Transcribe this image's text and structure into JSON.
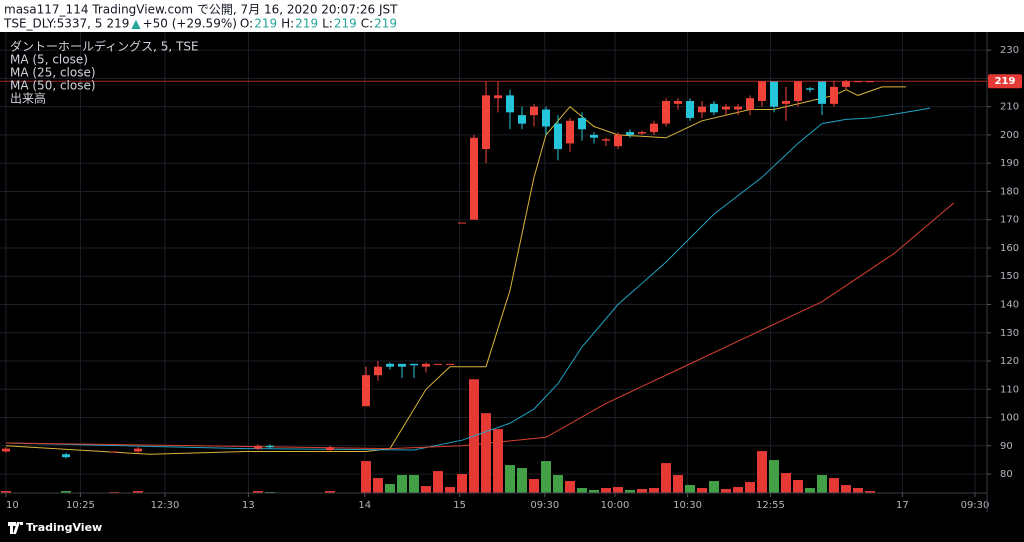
{
  "header": {
    "title": "masa117_114 TradingView.com で公開, 7月 16, 2020 20:07:26 JST",
    "symbol": "TSE_DLY:5337, 5",
    "last": 219,
    "arrow": "▲",
    "change": "+50 (+29.59%)",
    "ohlc": [
      {
        "label": "O:",
        "value": 219
      },
      {
        "label": "H:",
        "value": 219
      },
      {
        "label": "L:",
        "value": 219
      },
      {
        "label": "C:",
        "value": 219
      }
    ]
  },
  "footer": {
    "brand": "TradingView"
  },
  "chart_data": {
    "type": "candlestick",
    "title": "ダントーホールディングス, 5, TSE",
    "volume_name": "出来高",
    "up_color": "#f0433a",
    "down_color": "#26c6da",
    "volume_up_color": "#e53935",
    "volume_down_color": "#43a047",
    "last_price": 219,
    "last_price_color": "#e53935",
    "x": [
      0,
      5,
      9,
      11,
      21,
      22,
      27,
      30,
      31,
      32,
      33,
      34,
      35,
      36,
      37,
      38,
      39,
      40,
      41,
      42,
      43,
      44,
      45,
      46,
      47,
      48,
      49,
      50,
      51,
      52,
      53,
      54,
      55,
      56,
      57,
      58,
      59,
      60,
      61,
      62,
      63,
      64,
      65,
      66,
      67,
      68,
      69,
      70,
      71,
      72
    ],
    "open": [
      88,
      87,
      88,
      88,
      89,
      90,
      88.5,
      104,
      115,
      119,
      119,
      119,
      118,
      119,
      119,
      169,
      170,
      195,
      213,
      214,
      207,
      207,
      209,
      204,
      197,
      206,
      200,
      198,
      196,
      201,
      200.5,
      201,
      204,
      211,
      212,
      208,
      211,
      209,
      209,
      209,
      212,
      219,
      211,
      212,
      216.5,
      219,
      211,
      217,
      219,
      219
    ],
    "high": [
      89.5,
      87.5,
      88,
      89.5,
      90.5,
      90.5,
      90,
      118,
      120,
      119.5,
      119,
      119,
      119.5,
      119,
      119,
      169,
      200,
      219,
      219,
      216,
      210,
      211,
      210,
      207,
      206,
      208,
      201,
      199,
      201,
      202,
      201.5,
      205,
      213,
      213,
      213,
      212,
      212,
      211,
      211,
      214,
      219,
      219,
      217,
      219,
      217,
      219,
      219,
      219.5,
      219,
      219
    ],
    "low": [
      87.5,
      85.5,
      88,
      87.5,
      88.5,
      89,
      88,
      104,
      113,
      117,
      114,
      114,
      116,
      119,
      119,
      169,
      170,
      190,
      208,
      202,
      202,
      203,
      200,
      191,
      194,
      198,
      197,
      196,
      195,
      199,
      200,
      200,
      203,
      209,
      205,
      206,
      207,
      207,
      207,
      207,
      210,
      208,
      205,
      210,
      215,
      207,
      210,
      216,
      219,
      219
    ],
    "close": [
      89,
      86,
      88,
      89,
      90,
      89.5,
      89.5,
      115,
      118,
      118,
      118,
      118.5,
      119,
      119,
      119,
      169,
      199,
      214,
      214,
      208,
      204,
      210,
      203,
      195,
      205,
      202,
      199,
      198.5,
      200,
      200,
      201,
      204,
      212,
      212,
      206,
      210,
      208,
      210,
      210,
      213,
      219,
      210,
      212,
      219,
      216,
      211,
      217,
      219,
      219,
      219
    ],
    "volume": [
      2,
      2,
      1,
      2,
      2,
      1,
      2,
      32,
      15,
      9,
      18,
      18,
      7,
      22,
      6,
      19,
      114,
      80,
      64,
      28,
      25,
      14,
      32,
      18,
      12,
      5,
      3,
      5,
      6,
      3,
      4,
      5,
      30,
      18,
      8,
      5,
      12,
      4,
      6,
      11,
      42,
      33,
      20,
      13,
      5,
      18,
      15,
      8,
      5,
      2
    ],
    "series": [
      {
        "name": "MA (5, close)",
        "color": "#d8b53a",
        "x": [
          0,
          12,
          20,
          30,
          32,
          35,
          37,
          40,
          42,
          44,
          45,
          47,
          49,
          51,
          55,
          58,
          62,
          64,
          67,
          69,
          70,
          71,
          73,
          75
        ],
        "values": [
          90,
          87,
          88,
          88,
          89,
          110,
          118,
          118,
          145,
          185,
          200,
          210,
          203,
          200,
          199,
          205,
          209,
          209,
          212,
          214,
          216,
          214,
          217,
          217
        ]
      },
      {
        "name": "MA (25, close)",
        "color": "#1fa3c4",
        "x": [
          0,
          10,
          20,
          34,
          38,
          42,
          44,
          46,
          48,
          51,
          55,
          59,
          63,
          66,
          68,
          70,
          72,
          75,
          77
        ],
        "values": [
          91,
          90,
          89,
          88.5,
          92,
          98,
          103,
          112,
          125,
          140,
          155,
          172,
          185,
          197,
          204,
          205.5,
          206,
          208,
          209.5
        ]
      },
      {
        "name": "MA (50, close)",
        "color": "#d9402f",
        "x": [
          0,
          16,
          32,
          38,
          45,
          50,
          56,
          62,
          68,
          74,
          79
        ],
        "values": [
          91,
          90,
          89,
          90,
          93,
          105,
          117,
          129,
          141,
          158,
          176
        ]
      }
    ],
    "xlim": [
      -0.5,
      81.75
    ],
    "xticks": [
      {
        "value": 0,
        "label": "10"
      },
      {
        "value": 6.2,
        "label": "10:25"
      },
      {
        "value": 13.25,
        "label": "12:30"
      },
      {
        "value": 20.2,
        "label": "13"
      },
      {
        "value": 29.9,
        "label": "14"
      },
      {
        "value": 37.8,
        "label": "15"
      },
      {
        "value": 44.9,
        "label": "09:30"
      },
      {
        "value": 50.75,
        "label": "10:00"
      },
      {
        "value": 56.8,
        "label": "10:30"
      },
      {
        "value": 63.7,
        "label": "12:55"
      },
      {
        "value": 74.7,
        "label": "17"
      },
      {
        "value": 80.75,
        "label": "09:30"
      }
    ],
    "ylim": [
      73.3,
      234.3
    ],
    "yticks": [
      80,
      90,
      100,
      110,
      120,
      130,
      140,
      150,
      160,
      170,
      180,
      190,
      200,
      210,
      220,
      230
    ],
    "grid": true
  }
}
